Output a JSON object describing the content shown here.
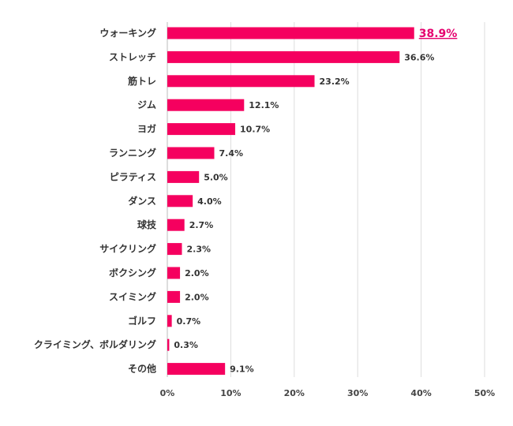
{
  "chart_data": {
    "type": "bar",
    "orientation": "horizontal",
    "categories": [
      "ウォーキング",
      "ストレッチ",
      "筋トレ",
      "ジム",
      "ヨガ",
      "ランニング",
      "ピラティス",
      "ダンス",
      "球技",
      "サイクリング",
      "ボクシング",
      "スイミング",
      "ゴルフ",
      "クライミング、ボルダリング",
      "その他"
    ],
    "values": [
      38.9,
      36.6,
      23.2,
      12.1,
      10.7,
      7.4,
      5.0,
      4.0,
      2.7,
      2.3,
      2.0,
      2.0,
      0.7,
      0.3,
      9.1
    ],
    "value_labels": [
      "38.9%",
      "36.6%",
      "23.2%",
      "12.1%",
      "10.7%",
      "7.4%",
      "5.0%",
      "4.0%",
      "2.7%",
      "2.3%",
      "2.0%",
      "2.0%",
      "0.7%",
      "0.3%",
      "9.1%"
    ],
    "highlight_index": 0,
    "xlim": [
      0,
      50
    ],
    "xticks": [
      0,
      10,
      20,
      30,
      40,
      50
    ],
    "xtick_labels": [
      "0%",
      "10%",
      "20%",
      "30%",
      "40%",
      "50%"
    ],
    "grid": "vertical",
    "title": "",
    "xlabel": "",
    "ylabel": "",
    "colors": {
      "bar": "#f5005f",
      "highlight_text": "#e5006e",
      "grid": "#dddddd"
    }
  }
}
